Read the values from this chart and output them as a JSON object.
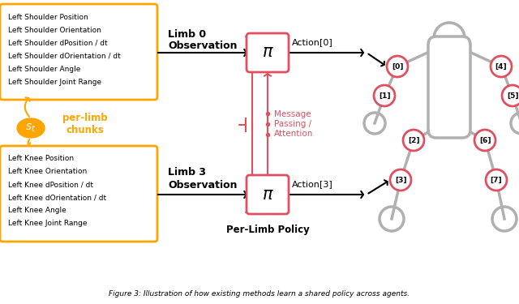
{
  "fig_width": 6.4,
  "fig_height": 3.75,
  "bg_color": "#ffffff",
  "orange_color": "#FFA500",
  "red_color": "#E05060",
  "gray_color": "#B0B0B0",
  "black_color": "#000000",
  "box1_lines": [
    "Left Shoulder Position",
    "Left Shoulder Orientation",
    "Left Shoulder dPosition / dt",
    "Left Shoulder dOrientation / dt",
    "Left Shoulder Angle",
    "Left Shoulder Joint Range"
  ],
  "box2_lines": [
    "Left Knee Position",
    "Left Knee Orientation",
    "Left Knee dPosition / dt",
    "Left Knee dOrientation / dt",
    "Left Knee Angle",
    "Left Knee Joint Range"
  ]
}
